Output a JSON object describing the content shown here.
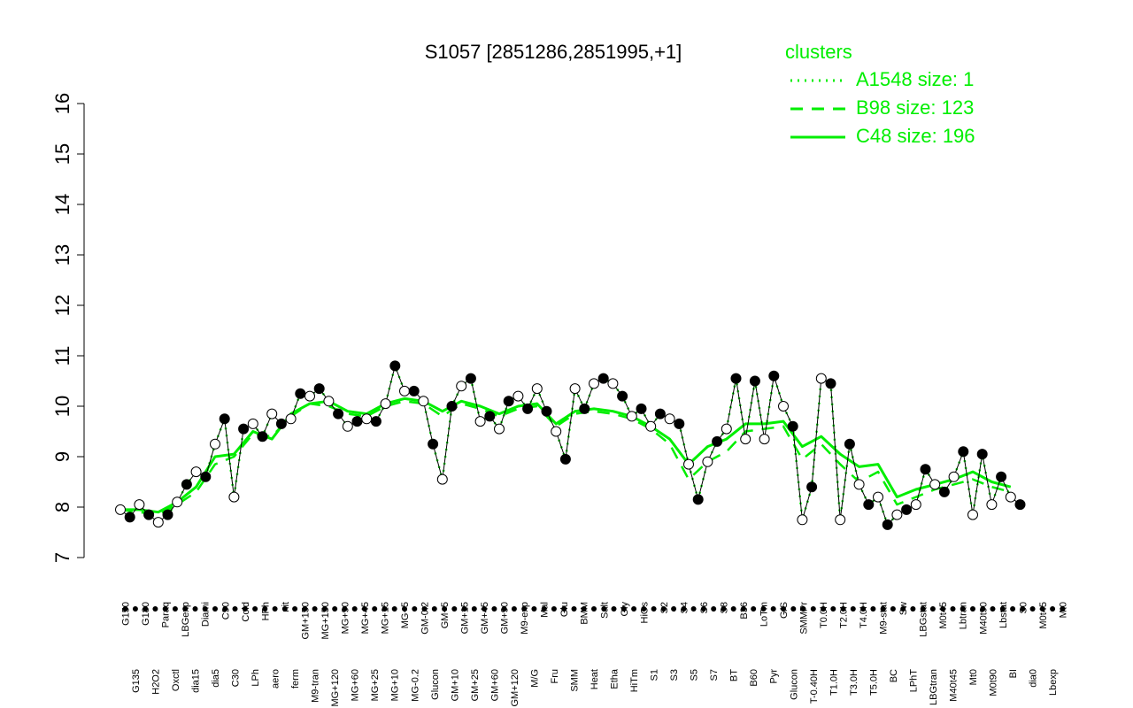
{
  "chart_data": {
    "type": "line",
    "title": "S1057 [2851286,2851995,+1]",
    "xlabel": "",
    "ylabel": "",
    "ylim": [
      7,
      16
    ],
    "yticks": [
      7,
      8,
      9,
      10,
      11,
      12,
      13,
      14,
      15,
      16
    ],
    "grid": false,
    "legend": {
      "title": "clusters",
      "position": "top-right",
      "entries": [
        {
          "label": "A1548 size: 1",
          "style": "dotted"
        },
        {
          "label": "B98 size: 123",
          "style": "dashed"
        },
        {
          "label": "C48 size: 196",
          "style": "solid"
        }
      ]
    },
    "colors": {
      "series": "#00ee00",
      "text": "#000000",
      "axis": "#000000"
    },
    "x_tick_labels": [
      "G150",
      "G135",
      "G180",
      "H2O2",
      "Paraq",
      "Oxctl",
      "LBGexp",
      "dia15",
      "Diami",
      "dia5",
      "C90",
      "C30",
      "Cold",
      "LPh",
      "HPh",
      "aero",
      "nit",
      "ferm",
      "GM+150",
      "M9-tran",
      "MG+150",
      "MG+120",
      "MG+90",
      "MG+60",
      "MG+45",
      "MG+25",
      "MG+15",
      "MG+10",
      "MG+5",
      "MG-0.2",
      "GM-0.2",
      "Glucon",
      "GM+5",
      "GM+10",
      "GM+15",
      "GM+25",
      "GM+45",
      "GM+60",
      "GM+90",
      "GM+120",
      "M9-exp",
      "M/G",
      "Mal",
      "Fru",
      "Glu",
      "SMM",
      "BMM",
      "Heat",
      "Salt",
      "Etha",
      "Gly",
      "HiTm",
      "HiOs",
      "S1",
      "S2",
      "S3",
      "S4",
      "S5",
      "S6",
      "S7",
      "S8",
      "BT",
      "B36",
      "B60",
      "LoTm",
      "Pyr",
      "G/S",
      "Glucon",
      "SMMPr",
      "T-0.40H",
      "T0.0H",
      "T1.0H",
      "T2.0H",
      "T3.0H",
      "T4.0H",
      "T5.0H",
      "M9-stat",
      "BC",
      "Sw",
      "LPhT",
      "LBGstat",
      "LBGtran",
      "M0t45",
      "M40t45",
      "Lbtran",
      "Mt0",
      "M40t90",
      "M0t90",
      "Lbstat",
      "BI",
      "S0",
      "dia0",
      "M0t45",
      "Lbexp",
      "Mt0"
    ],
    "series": [
      {
        "name": "A1548 size: 1",
        "line": "dotted",
        "points": [
          [
            0.0,
            7.95
          ],
          [
            0.01,
            7.8
          ],
          [
            0.02,
            8.05
          ],
          [
            0.03,
            7.85
          ],
          [
            0.04,
            7.7
          ],
          [
            0.05,
            7.85
          ],
          [
            0.06,
            8.1
          ],
          [
            0.07,
            8.45
          ],
          [
            0.08,
            8.7
          ],
          [
            0.09,
            8.6
          ],
          [
            0.1,
            9.25
          ],
          [
            0.11,
            9.75
          ],
          [
            0.12,
            8.2
          ],
          [
            0.13,
            9.55
          ],
          [
            0.14,
            9.65
          ],
          [
            0.15,
            9.4
          ],
          [
            0.16,
            9.85
          ],
          [
            0.17,
            9.65
          ],
          [
            0.18,
            9.75
          ],
          [
            0.19,
            10.25
          ],
          [
            0.2,
            10.2
          ],
          [
            0.21,
            10.35
          ],
          [
            0.22,
            10.1
          ],
          [
            0.23,
            9.85
          ],
          [
            0.24,
            9.6
          ],
          [
            0.25,
            9.7
          ],
          [
            0.26,
            9.75
          ],
          [
            0.27,
            9.7
          ],
          [
            0.28,
            10.05
          ],
          [
            0.29,
            10.8
          ],
          [
            0.3,
            10.3
          ],
          [
            0.31,
            10.3
          ],
          [
            0.32,
            10.1
          ],
          [
            0.33,
            9.25
          ],
          [
            0.34,
            8.55
          ],
          [
            0.35,
            10.0
          ],
          [
            0.36,
            10.4
          ],
          [
            0.37,
            10.55
          ],
          [
            0.38,
            9.7
          ],
          [
            0.39,
            9.8
          ],
          [
            0.4,
            9.55
          ],
          [
            0.41,
            10.1
          ],
          [
            0.42,
            10.2
          ],
          [
            0.43,
            9.95
          ],
          [
            0.44,
            10.35
          ],
          [
            0.45,
            9.9
          ],
          [
            0.46,
            9.5
          ],
          [
            0.47,
            8.95
          ],
          [
            0.48,
            10.35
          ],
          [
            0.49,
            9.95
          ],
          [
            0.5,
            10.45
          ],
          [
            0.51,
            10.55
          ],
          [
            0.52,
            10.45
          ],
          [
            0.53,
            10.2
          ],
          [
            0.54,
            9.8
          ],
          [
            0.55,
            9.95
          ],
          [
            0.56,
            9.6
          ],
          [
            0.57,
            9.85
          ],
          [
            0.58,
            9.75
          ],
          [
            0.59,
            9.65
          ],
          [
            0.6,
            8.85
          ],
          [
            0.61,
            8.15
          ],
          [
            0.62,
            8.9
          ],
          [
            0.63,
            9.3
          ],
          [
            0.64,
            9.55
          ],
          [
            0.65,
            10.55
          ],
          [
            0.66,
            9.35
          ],
          [
            0.67,
            10.5
          ],
          [
            0.68,
            9.35
          ],
          [
            0.69,
            10.6
          ],
          [
            0.7,
            10.0
          ],
          [
            0.71,
            9.6
          ],
          [
            0.72,
            7.75
          ],
          [
            0.73,
            8.4
          ],
          [
            0.74,
            10.55
          ],
          [
            0.75,
            10.45
          ],
          [
            0.76,
            7.75
          ],
          [
            0.77,
            9.25
          ],
          [
            0.78,
            8.45
          ],
          [
            0.79,
            8.05
          ],
          [
            0.8,
            8.2
          ],
          [
            0.81,
            7.65
          ],
          [
            0.82,
            7.85
          ],
          [
            0.83,
            7.95
          ],
          [
            0.84,
            8.05
          ],
          [
            0.85,
            8.75
          ],
          [
            0.86,
            8.45
          ],
          [
            0.87,
            8.3
          ],
          [
            0.88,
            8.6
          ],
          [
            0.89,
            9.1
          ],
          [
            0.9,
            7.85
          ],
          [
            0.91,
            9.05
          ],
          [
            0.92,
            8.05
          ],
          [
            0.93,
            8.6
          ],
          [
            0.94,
            8.2
          ],
          [
            0.95,
            8.05
          ]
        ]
      },
      {
        "name": "B98 size: 123",
        "line": "dashed",
        "points": [
          [
            0.0,
            7.95
          ],
          [
            0.02,
            7.9
          ],
          [
            0.04,
            7.85
          ],
          [
            0.06,
            8.05
          ],
          [
            0.08,
            8.3
          ],
          [
            0.1,
            8.85
          ],
          [
            0.12,
            9.0
          ],
          [
            0.14,
            9.45
          ],
          [
            0.16,
            9.4
          ],
          [
            0.18,
            9.8
          ],
          [
            0.2,
            10.05
          ],
          [
            0.22,
            10.0
          ],
          [
            0.24,
            9.85
          ],
          [
            0.26,
            9.8
          ],
          [
            0.28,
            10.0
          ],
          [
            0.3,
            10.1
          ],
          [
            0.32,
            10.05
          ],
          [
            0.34,
            9.8
          ],
          [
            0.36,
            10.05
          ],
          [
            0.38,
            9.95
          ],
          [
            0.4,
            9.8
          ],
          [
            0.42,
            9.95
          ],
          [
            0.44,
            10.0
          ],
          [
            0.46,
            9.6
          ],
          [
            0.48,
            9.85
          ],
          [
            0.5,
            9.9
          ],
          [
            0.52,
            9.85
          ],
          [
            0.54,
            9.75
          ],
          [
            0.56,
            9.55
          ],
          [
            0.58,
            9.25
          ],
          [
            0.6,
            8.55
          ],
          [
            0.62,
            8.9
          ],
          [
            0.64,
            9.1
          ],
          [
            0.66,
            9.5
          ],
          [
            0.68,
            9.55
          ],
          [
            0.7,
            9.6
          ],
          [
            0.72,
            8.95
          ],
          [
            0.74,
            9.25
          ],
          [
            0.76,
            8.85
          ],
          [
            0.78,
            8.5
          ],
          [
            0.8,
            8.7
          ],
          [
            0.82,
            8.05
          ],
          [
            0.84,
            8.2
          ],
          [
            0.86,
            8.35
          ],
          [
            0.88,
            8.45
          ],
          [
            0.9,
            8.55
          ],
          [
            0.92,
            8.4
          ],
          [
            0.94,
            8.3
          ]
        ]
      },
      {
        "name": "C48 size: 196",
        "line": "solid",
        "points": [
          [
            0.0,
            7.95
          ],
          [
            0.02,
            7.95
          ],
          [
            0.04,
            7.9
          ],
          [
            0.06,
            8.1
          ],
          [
            0.08,
            8.4
          ],
          [
            0.1,
            9.0
          ],
          [
            0.12,
            9.05
          ],
          [
            0.14,
            9.5
          ],
          [
            0.16,
            9.35
          ],
          [
            0.18,
            9.85
          ],
          [
            0.2,
            10.05
          ],
          [
            0.22,
            10.1
          ],
          [
            0.24,
            9.9
          ],
          [
            0.26,
            9.85
          ],
          [
            0.28,
            10.05
          ],
          [
            0.3,
            10.15
          ],
          [
            0.32,
            10.1
          ],
          [
            0.34,
            9.9
          ],
          [
            0.36,
            10.1
          ],
          [
            0.38,
            10.0
          ],
          [
            0.4,
            9.85
          ],
          [
            0.42,
            10.0
          ],
          [
            0.44,
            10.05
          ],
          [
            0.46,
            9.65
          ],
          [
            0.48,
            9.9
          ],
          [
            0.5,
            9.95
          ],
          [
            0.52,
            9.9
          ],
          [
            0.54,
            9.8
          ],
          [
            0.56,
            9.6
          ],
          [
            0.58,
            9.35
          ],
          [
            0.6,
            8.85
          ],
          [
            0.62,
            9.2
          ],
          [
            0.64,
            9.35
          ],
          [
            0.66,
            9.65
          ],
          [
            0.68,
            9.65
          ],
          [
            0.7,
            9.7
          ],
          [
            0.72,
            9.2
          ],
          [
            0.74,
            9.4
          ],
          [
            0.76,
            9.05
          ],
          [
            0.78,
            8.8
          ],
          [
            0.8,
            8.85
          ],
          [
            0.82,
            8.2
          ],
          [
            0.84,
            8.35
          ],
          [
            0.86,
            8.45
          ],
          [
            0.88,
            8.55
          ],
          [
            0.9,
            8.7
          ],
          [
            0.92,
            8.5
          ],
          [
            0.94,
            8.4
          ]
        ]
      }
    ]
  }
}
